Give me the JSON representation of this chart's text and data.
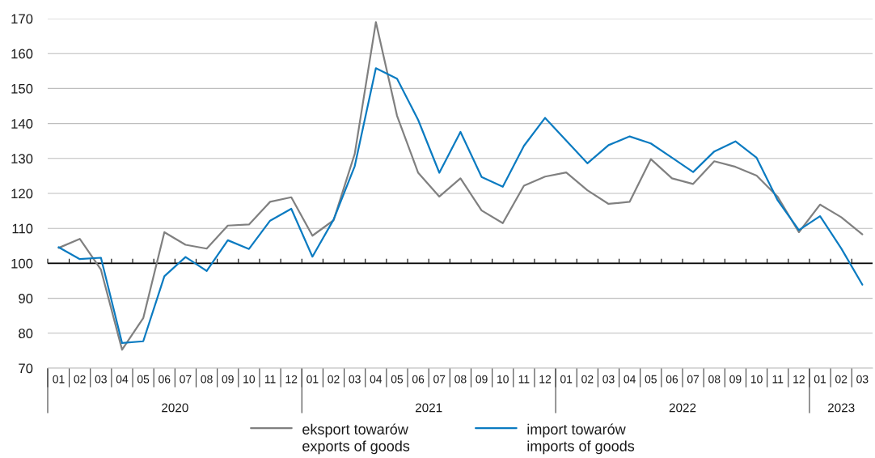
{
  "chart_data": {
    "type": "line",
    "x": [
      "2020-01",
      "2020-02",
      "2020-03",
      "2020-04",
      "2020-05",
      "2020-06",
      "2020-07",
      "2020-08",
      "2020-09",
      "2020-10",
      "2020-11",
      "2020-12",
      "2021-01",
      "2021-02",
      "2021-03",
      "2021-04",
      "2021-05",
      "2021-06",
      "2021-07",
      "2021-08",
      "2021-09",
      "2021-10",
      "2021-11",
      "2021-12",
      "2022-01",
      "2022-02",
      "2022-03",
      "2022-04",
      "2022-05",
      "2022-06",
      "2022-07",
      "2022-08",
      "2022-09",
      "2022-10",
      "2022-11",
      "2022-12",
      "2023-01",
      "2023-02",
      "2023-03"
    ],
    "series": [
      {
        "name": "eksport towarów\nexports of goods",
        "color": "#808080",
        "values": [
          104.4,
          107.0,
          98.2,
          75.3,
          84.3,
          108.9,
          105.3,
          104.2,
          110.8,
          111.1,
          117.6,
          118.9,
          107.9,
          112.3,
          131.3,
          169.0,
          142.2,
          125.9,
          119.1,
          124.3,
          115.1,
          111.5,
          122.2,
          124.8,
          126.0,
          120.9,
          117.0,
          117.6,
          129.8,
          124.3,
          122.7,
          129.2,
          127.6,
          125.1,
          119.0,
          108.9,
          116.8,
          113.2,
          108.3
        ]
      },
      {
        "name": "import towarów\nimports of goods",
        "color": "#0b7bc1",
        "values": [
          104.6,
          101.2,
          101.6,
          77.2,
          77.7,
          96.3,
          101.8,
          97.8,
          106.6,
          104.1,
          112.2,
          115.6,
          101.9,
          112.5,
          127.8,
          155.8,
          152.8,
          141.0,
          125.9,
          137.6,
          124.7,
          121.9,
          133.6,
          141.6,
          135.1,
          128.6,
          133.8,
          136.3,
          134.3,
          130.2,
          126.1,
          132.0,
          134.9,
          130.2,
          118.0,
          109.5,
          113.5,
          104.3,
          93.9
        ]
      }
    ],
    "xlim": [
      "2019-12-16",
      "2023-03-16"
    ],
    "xticks": [
      {
        "value": "2020-01",
        "label": "01"
      },
      {
        "value": "2020-02",
        "label": "02"
      },
      {
        "value": "2020-03",
        "label": "03"
      },
      {
        "value": "2020-04",
        "label": "04"
      },
      {
        "value": "2020-05",
        "label": "05"
      },
      {
        "value": "2020-06",
        "label": "06"
      },
      {
        "value": "2020-07",
        "label": "07"
      },
      {
        "value": "2020-08",
        "label": "08"
      },
      {
        "value": "2020-09",
        "label": "09"
      },
      {
        "value": "2020-10",
        "label": "10"
      },
      {
        "value": "2020-11",
        "label": "11"
      },
      {
        "value": "2020-12",
        "label": "12"
      },
      {
        "value": "2021-01",
        "label": "01"
      },
      {
        "value": "2021-02",
        "label": "02"
      },
      {
        "value": "2021-03",
        "label": "03"
      },
      {
        "value": "2021-04",
        "label": "04"
      },
      {
        "value": "2021-05",
        "label": "05"
      },
      {
        "value": "2021-06",
        "label": "06"
      },
      {
        "value": "2021-07",
        "label": "07"
      },
      {
        "value": "2021-08",
        "label": "08"
      },
      {
        "value": "2021-09",
        "label": "09"
      },
      {
        "value": "2021-10",
        "label": "10"
      },
      {
        "value": "2021-11",
        "label": "11"
      },
      {
        "value": "2021-12",
        "label": "12"
      },
      {
        "value": "2022-01",
        "label": "01"
      },
      {
        "value": "2022-02",
        "label": "02"
      },
      {
        "value": "2022-03",
        "label": "03"
      },
      {
        "value": "2022-04",
        "label": "04"
      },
      {
        "value": "2022-05",
        "label": "05"
      },
      {
        "value": "2022-06",
        "label": "06"
      },
      {
        "value": "2022-07",
        "label": "07"
      },
      {
        "value": "2022-08",
        "label": "08"
      },
      {
        "value": "2022-09",
        "label": "09"
      },
      {
        "value": "2022-10",
        "label": "10"
      },
      {
        "value": "2022-11",
        "label": "11"
      },
      {
        "value": "2022-12",
        "label": "12"
      },
      {
        "value": "2023-01",
        "label": "01"
      },
      {
        "value": "2023-02",
        "label": "02"
      },
      {
        "value": "2023-03",
        "label": "03"
      }
    ],
    "ylim": [
      70,
      170
    ],
    "yticks": [
      70,
      80,
      90,
      100,
      110,
      120,
      130,
      140,
      150,
      160,
      170
    ],
    "ref_lines": [
      {
        "axis": "y",
        "value": 100,
        "color": "#000000"
      }
    ],
    "annotations": [
      "2020",
      "2021",
      "2022",
      "2023"
    ],
    "grid": "y",
    "legend": "bottom",
    "line_style": "solid"
  }
}
